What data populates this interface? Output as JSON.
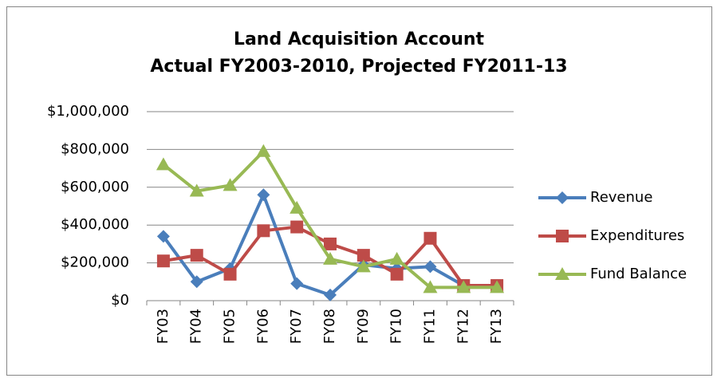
{
  "chart_data": {
    "type": "line",
    "title": "Land Acquisition Account",
    "subtitle": "Actual FY2003-2010, Projected FY2011-13",
    "categories": [
      "FY03",
      "FY04",
      "FY05",
      "FY06",
      "FY07",
      "FY08",
      "FY09",
      "FY10",
      "FY11",
      "FY12",
      "FY13"
    ],
    "series": [
      {
        "name": "Revenue",
        "color": "#4a7ebb",
        "marker": "diamond",
        "values": [
          340000,
          100000,
          170000,
          560000,
          90000,
          30000,
          190000,
          170000,
          180000,
          80000,
          80000
        ]
      },
      {
        "name": "Expenditures",
        "color": "#be4b48",
        "marker": "square",
        "values": [
          210000,
          240000,
          140000,
          370000,
          390000,
          300000,
          240000,
          140000,
          330000,
          80000,
          80000
        ]
      },
      {
        "name": "Fund Balance",
        "color": "#98b954",
        "marker": "triangle",
        "values": [
          720000,
          580000,
          610000,
          790000,
          490000,
          220000,
          180000,
          220000,
          70000,
          70000,
          70000
        ]
      }
    ],
    "ylim": [
      0,
      1000000
    ],
    "yticks": [
      {
        "value": 0,
        "label": "$0"
      },
      {
        "value": 200000,
        "label": "$200,000"
      },
      {
        "value": 400000,
        "label": "$400,000"
      },
      {
        "value": 600000,
        "label": "$600,000"
      },
      {
        "value": 800000,
        "label": "$800,000"
      },
      {
        "value": 1000000,
        "label": "$1,000,000"
      }
    ],
    "grid": true,
    "legend": "right"
  }
}
